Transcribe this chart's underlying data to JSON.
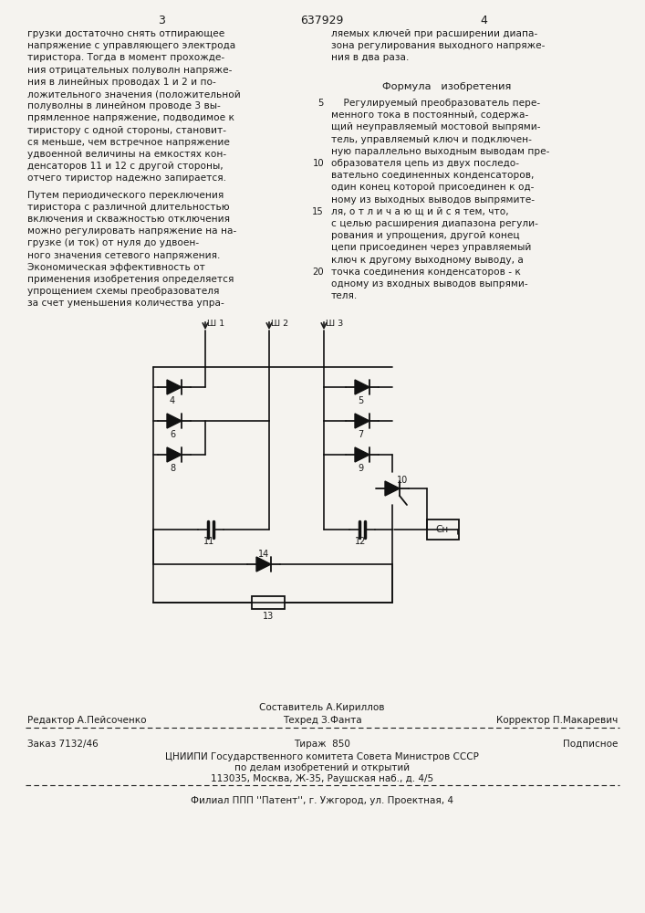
{
  "bg_color": "#f5f3ef",
  "text_color": "#1a1a1a",
  "page_number_left": "3",
  "page_number_center": "637929",
  "page_number_right": "4",
  "left_column_text": [
    "грузки достаточно снять отпирающее",
    "напряжение с управляющего электрода",
    "тиристора. Тогда в момент прохожде-",
    "ния отрицательных полуволн напряже-",
    "ния в линейных проводах 1 и 2 и по-",
    "ложительного значения (положительной",
    "полуволны в линейном проводе 3 вы-",
    "прямленное напряжение, подводимое к",
    "тиристору с одной стороны, становит-",
    "ся меньше, чем встречное напряжение",
    "удвоенной величины на емкостях кон-",
    "денсаторов 11 и 12 с другой стороны,",
    "отчего тиристор надежно запирается."
  ],
  "left_column_text2": [
    "Путем периодического переключения",
    "тиристора с различной длительностью",
    "включения и скважностью отключения",
    "можно регулировать напряжение на на-",
    "грузке (и ток) от нуля до удвоен-",
    "ного значения сетевого напряжения.",
    "Экономическая эффективность от",
    "применения изобретения определяется",
    "упрощением схемы преобразователя",
    "за счет уменьшения количества упра-"
  ],
  "right_column_text": [
    "ляемых ключей при расширении диапа-",
    "зона регулирования выходного напряже-",
    "ния в два раза."
  ],
  "formula_title": "Формула   изобретения",
  "formula_text": [
    "    Регулируемый преобразователь пере-",
    "менного тока в постоянный, содержа-",
    "щий неуправляемый мостовой выпрями-",
    "тель, управляемый ключ и подключен-",
    "ную параллельно выходным выводам пре-",
    "образователя цепь из двух последо-",
    "вательно соединенных конденсаторов,",
    "один конец которой присоединен к од-",
    "ному из выходных выводов выпрямите-",
    "ля, о т л и ч а ю щ и й с я тем, что,",
    "с целью расширения диапазона регули-",
    "рования и упрощения, другой конец",
    "цепи присоединен через управляемый",
    "ключ к другому выходному выводу, а",
    "точка соединения конденсаторов - к",
    "одному из входных выводов выпрями-",
    "теля."
  ],
  "formula_line_numbers": {
    "0": "5",
    "5": "10",
    "9": "15",
    "14": "20"
  },
  "editor_line": "Редактор А.Пейсоченко",
  "composer_line": "Составитель А.Кириллов",
  "techred_line": "Техред З.Фанта",
  "corrector_line": "Корректор П.Макаревич",
  "order_line": "Заказ 7132/46",
  "tirazh_line": "Тираж  850",
  "podpisnoe_line": "Подписное",
  "cnipi_line1": "ЦНИИПИ Государственного комитета Совета Министров СССР",
  "cnipi_line2": "по делам изобретений и открытий",
  "cnipi_line3": "113035, Москва, Ж-35, Раушская наб., д. 4/5",
  "filial_line": "Филиал ППП ''Патент'', г. Ужгород, ул. Проектная, 4"
}
